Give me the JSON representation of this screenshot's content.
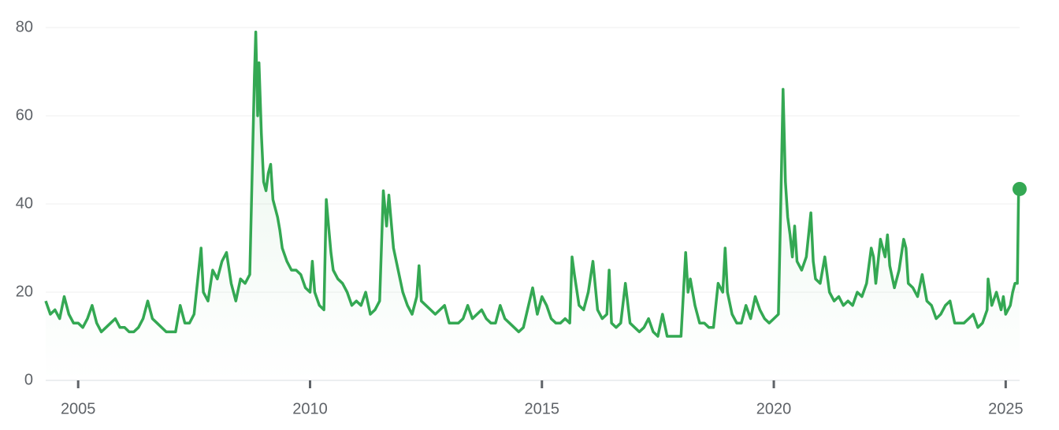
{
  "chart_data": {
    "type": "line",
    "x": [
      2004.3,
      2004.4,
      2004.5,
      2004.6,
      2004.7,
      2004.8,
      2004.9,
      2005.0,
      2005.1,
      2005.2,
      2005.3,
      2005.4,
      2005.5,
      2005.6,
      2005.7,
      2005.8,
      2005.9,
      2006.0,
      2006.1,
      2006.2,
      2006.3,
      2006.4,
      2006.5,
      2006.6,
      2006.7,
      2006.8,
      2006.9,
      2007.0,
      2007.1,
      2007.2,
      2007.3,
      2007.4,
      2007.5,
      2007.6,
      2007.65,
      2007.7,
      2007.8,
      2007.9,
      2008.0,
      2008.1,
      2008.2,
      2008.3,
      2008.4,
      2008.5,
      2008.6,
      2008.7,
      2008.75,
      2008.8,
      2008.83,
      2008.87,
      2008.9,
      2008.95,
      2009.0,
      2009.05,
      2009.1,
      2009.15,
      2009.2,
      2009.3,
      2009.35,
      2009.4,
      2009.5,
      2009.6,
      2009.7,
      2009.8,
      2009.9,
      2010.0,
      2010.05,
      2010.1,
      2010.2,
      2010.3,
      2010.35,
      2010.4,
      2010.45,
      2010.5,
      2010.6,
      2010.7,
      2010.8,
      2010.9,
      2011.0,
      2011.1,
      2011.2,
      2011.3,
      2011.4,
      2011.5,
      2011.58,
      2011.65,
      2011.7,
      2011.8,
      2011.9,
      2012.0,
      2012.1,
      2012.2,
      2012.3,
      2012.35,
      2012.4,
      2012.5,
      2012.6,
      2012.7,
      2012.8,
      2012.9,
      2013.0,
      2013.1,
      2013.2,
      2013.3,
      2013.4,
      2013.5,
      2013.6,
      2013.7,
      2013.8,
      2013.9,
      2014.0,
      2014.1,
      2014.2,
      2014.3,
      2014.4,
      2014.5,
      2014.6,
      2014.8,
      2014.9,
      2015.0,
      2015.1,
      2015.2,
      2015.3,
      2015.4,
      2015.5,
      2015.6,
      2015.65,
      2015.7,
      2015.8,
      2015.9,
      2016.0,
      2016.1,
      2016.2,
      2016.3,
      2016.4,
      2016.45,
      2016.5,
      2016.6,
      2016.7,
      2016.8,
      2016.9,
      2017.0,
      2017.1,
      2017.2,
      2017.3,
      2017.4,
      2017.5,
      2017.6,
      2017.7,
      2017.8,
      2017.9,
      2018.0,
      2018.1,
      2018.15,
      2018.2,
      2018.3,
      2018.4,
      2018.5,
      2018.6,
      2018.7,
      2018.8,
      2018.9,
      2018.95,
      2019.0,
      2019.1,
      2019.2,
      2019.3,
      2019.4,
      2019.5,
      2019.6,
      2019.7,
      2019.8,
      2019.9,
      2020.0,
      2020.1,
      2020.15,
      2020.2,
      2020.25,
      2020.3,
      2020.35,
      2020.4,
      2020.45,
      2020.5,
      2020.6,
      2020.7,
      2020.8,
      2020.85,
      2020.9,
      2021.0,
      2021.1,
      2021.2,
      2021.3,
      2021.4,
      2021.5,
      2021.6,
      2021.7,
      2021.8,
      2021.9,
      2022.0,
      2022.1,
      2022.15,
      2022.2,
      2022.3,
      2022.4,
      2022.45,
      2022.5,
      2022.6,
      2022.7,
      2022.8,
      2022.85,
      2022.9,
      2023.0,
      2023.1,
      2023.2,
      2023.3,
      2023.4,
      2023.5,
      2023.6,
      2023.7,
      2023.8,
      2023.9,
      2024.0,
      2024.1,
      2024.2,
      2024.3,
      2024.4,
      2024.5,
      2024.6,
      2024.62,
      2024.7,
      2024.8,
      2024.9,
      2024.95,
      2025.0,
      2025.1,
      2025.15,
      2025.2,
      2025.25,
      2025.28,
      2025.3
    ],
    "values": [
      18,
      15,
      16,
      14,
      19,
      15,
      13,
      13,
      12,
      14,
      17,
      13,
      11,
      12,
      13,
      14,
      12,
      12,
      11,
      11,
      12,
      14,
      18,
      14,
      13,
      12,
      11,
      11,
      11,
      17,
      13,
      13,
      15,
      25,
      30,
      20,
      18,
      25,
      23,
      27,
      29,
      22,
      18,
      23,
      22,
      24,
      46,
      69,
      79,
      60,
      72,
      56,
      45,
      43,
      47,
      49,
      41,
      37,
      34,
      30,
      27,
      25,
      25,
      24,
      21,
      20,
      27,
      20,
      17,
      16,
      41,
      35,
      29,
      25,
      23,
      22,
      20,
      17,
      18,
      17,
      20,
      15,
      16,
      18,
      43,
      35,
      42,
      30,
      25,
      20,
      17,
      15,
      19,
      26,
      18,
      17,
      16,
      15,
      16,
      17,
      13,
      13,
      13,
      14,
      17,
      14,
      15,
      16,
      14,
      13,
      13,
      17,
      14,
      13,
      12,
      11,
      12,
      21,
      15,
      19,
      17,
      14,
      13,
      13,
      14,
      13,
      28,
      24,
      17,
      16,
      20,
      27,
      16,
      14,
      15,
      25,
      13,
      12,
      13,
      22,
      13,
      12,
      11,
      12,
      14,
      11,
      10,
      15,
      10,
      10,
      10,
      10,
      29,
      20,
      23,
      17,
      13,
      13,
      12,
      12,
      22,
      20,
      30,
      20,
      15,
      13,
      13,
      17,
      14,
      19,
      16,
      14,
      13,
      14,
      15,
      40,
      66,
      45,
      37,
      33,
      28,
      35,
      27,
      25,
      28,
      38,
      27,
      23,
      22,
      28,
      20,
      18,
      19,
      17,
      18,
      17,
      20,
      19,
      22,
      30,
      28,
      22,
      32,
      28,
      33,
      26,
      21,
      25,
      32,
      30,
      22,
      21,
      19,
      24,
      18,
      17,
      14,
      15,
      17,
      18,
      13,
      13,
      13,
      14,
      15,
      12,
      13,
      16,
      23,
      17,
      20,
      16,
      19,
      15,
      17,
      20,
      22,
      22,
      44,
      43.4
    ],
    "color": "#34a853",
    "xlim": [
      2004.3,
      2025.3
    ],
    "xticks": [
      2005,
      2010,
      2015,
      2020,
      2025
    ],
    "ylim": [
      0,
      80
    ],
    "yticks": [
      0,
      20,
      40,
      60,
      80
    ],
    "grid": true
  }
}
